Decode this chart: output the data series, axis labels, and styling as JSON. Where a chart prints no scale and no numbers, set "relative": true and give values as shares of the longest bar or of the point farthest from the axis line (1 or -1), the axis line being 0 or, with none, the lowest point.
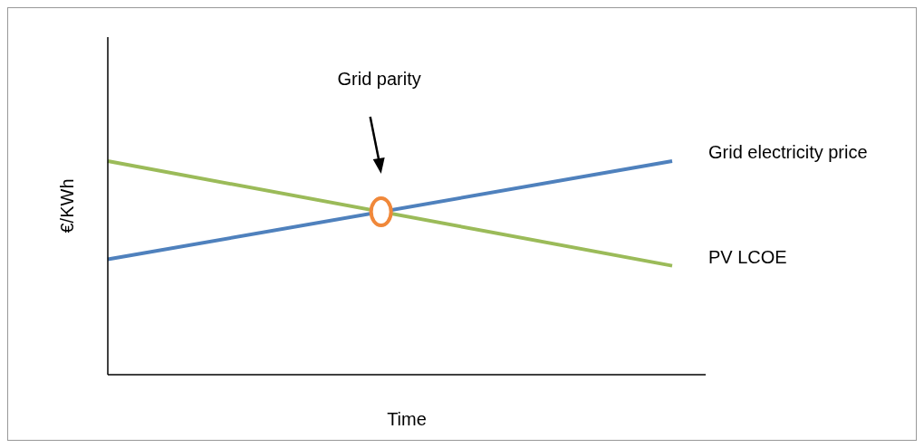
{
  "chart_data": {
    "type": "line",
    "relative": true,
    "xlabel": "Time",
    "ylabel": "€/KWh",
    "categories": [
      null,
      null
    ],
    "series": [
      {
        "name": "PV LCOE",
        "color": "#9bbb59",
        "values": [
          1,
          0.51
        ]
      },
      {
        "name": "Grid electricity price",
        "color": "#4f81bd",
        "values": [
          0.54,
          1
        ]
      }
    ],
    "annotations": [
      "Grid parity"
    ],
    "legend": false,
    "grid": false,
    "marker": "none",
    "line_style": "solid"
  }
}
